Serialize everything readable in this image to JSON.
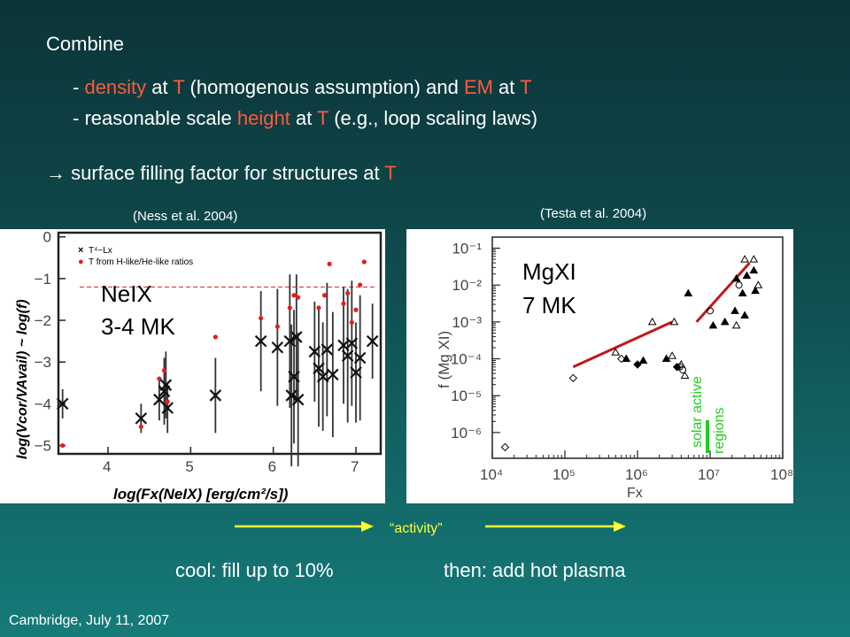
{
  "colors": {
    "highlight": "#ff5a3c",
    "arrow": "#ffff33",
    "solar": "#22cc22",
    "fit": "#c01818"
  },
  "heading": "Combine",
  "bullets": {
    "line1": {
      "dash": "- ",
      "w1": "density",
      "t1": " at ",
      "w2": "T",
      "t2": " (homogenous assumption)   and ",
      "w3": "EM",
      "t3": " at ",
      "w4": "T"
    },
    "line2": {
      "t1": "- reasonable scale ",
      "w1": "height",
      "t2": " at ",
      "w2": "T",
      "t3": " (e.g., loop scaling laws)"
    },
    "line3": {
      "arrow": "→",
      "t1": "  surface filling factor for structures at ",
      "w1": "T"
    }
  },
  "left_citation": "(Ness et al. 2004)",
  "right_citation": "(Testa et al. 2004)",
  "activity": {
    "label": "“activity”"
  },
  "bottom": {
    "left": "cool: fill up to 10%",
    "right": "then: add hot plasma"
  },
  "footer": "Cambridge, July 11, 2007",
  "chart_data": [
    {
      "type": "scatter",
      "title": "",
      "xlabel": "log(Fx(NeIX) [erg/cm²/s])",
      "ylabel": "log(Vcor/VAvail) ~ log(f)",
      "xticks": [
        "4",
        "5",
        "6",
        "7"
      ],
      "yticks": [
        "0",
        "−1",
        "−2",
        "−3",
        "−4",
        "−5"
      ],
      "xlim": [
        3.4,
        7.3
      ],
      "ylim": [
        -5.2,
        0.1
      ],
      "reference_line_y": -1.2,
      "legend": [
        {
          "marker": "×",
          "label": "T⁴~Lx"
        },
        {
          "marker": "●",
          "label": "T from H-like/He-like ratios"
        }
      ],
      "annotation": [
        "NeIX",
        "3-4 MK"
      ],
      "series": [
        {
          "name": "T⁴~Lx",
          "points": [
            [
              3.45,
              -4.0
            ],
            [
              4.4,
              -4.35
            ],
            [
              4.62,
              -3.9
            ],
            [
              4.68,
              -3.7
            ],
            [
              4.7,
              -3.55
            ],
            [
              4.72,
              -4.1
            ],
            [
              5.3,
              -3.8
            ],
            [
              5.85,
              -2.5
            ],
            [
              6.05,
              -2.65
            ],
            [
              6.2,
              -2.5
            ],
            [
              6.22,
              -3.8
            ],
            [
              6.25,
              -3.35
            ],
            [
              6.28,
              -2.4
            ],
            [
              6.3,
              -3.9
            ],
            [
              6.5,
              -2.75
            ],
            [
              6.55,
              -3.15
            ],
            [
              6.6,
              -3.35
            ],
            [
              6.65,
              -2.7
            ],
            [
              6.72,
              -3.3
            ],
            [
              6.85,
              -2.6
            ],
            [
              6.9,
              -2.85
            ],
            [
              6.95,
              -2.55
            ],
            [
              7.0,
              -3.25
            ],
            [
              7.05,
              -2.9
            ],
            [
              7.2,
              -2.5
            ]
          ],
          "yerr": [
            0.35,
            0.35,
            0.5,
            0.8,
            0.8,
            0.6,
            0.9,
            1.2,
            1.4,
            1.6,
            1.7,
            1.6,
            1.5,
            1.6,
            1.2,
            1.4,
            1.3,
            1.6,
            1.5,
            1.4,
            1.6,
            1.5,
            1.2,
            1.5,
            0.9
          ]
        },
        {
          "name": "T from H-like/He-like ratios",
          "points": [
            [
              3.45,
              -5.0
            ],
            [
              4.4,
              -4.55
            ],
            [
              4.62,
              -3.4
            ],
            [
              4.68,
              -3.2
            ],
            [
              4.72,
              -3.95
            ],
            [
              5.3,
              -2.4
            ],
            [
              5.85,
              -1.95
            ],
            [
              6.05,
              -2.15
            ],
            [
              6.2,
              -1.7
            ],
            [
              6.25,
              -1.4
            ],
            [
              6.3,
              -1.45
            ],
            [
              6.55,
              -1.7
            ],
            [
              6.62,
              -1.4
            ],
            [
              6.68,
              -0.65
            ],
            [
              6.85,
              -1.6
            ],
            [
              6.9,
              -1.35
            ],
            [
              6.95,
              -2.05
            ],
            [
              7.0,
              -1.75
            ],
            [
              7.05,
              -1.15
            ],
            [
              7.1,
              -0.6
            ]
          ]
        }
      ]
    },
    {
      "type": "scatter",
      "title": "",
      "xlabel": "Fx",
      "ylabel": "f (Mg XI)",
      "log_scale": true,
      "xticks": [
        "10⁴",
        "10⁵",
        "10⁶",
        "10⁷",
        "10⁸"
      ],
      "yticks": [
        "10⁻⁶",
        "10⁻⁵",
        "10⁻⁴",
        "10⁻³",
        "10⁻²",
        "10⁻¹"
      ],
      "xlim": [
        "1e4",
        "1e8"
      ],
      "ylim": [
        "2e-7",
        "2e-1"
      ],
      "annotation": [
        "MgXI",
        "7 MK"
      ],
      "region_label": [
        "solar active",
        "regions"
      ],
      "fits": [
        {
          "x": [
            130000.0,
            3000000.0
          ],
          "y": [
            6e-05,
            0.001
          ]
        },
        {
          "x": [
            6500000.0,
            35000000.0
          ],
          "y": [
            0.001,
            0.04
          ]
        }
      ],
      "series": [
        {
          "name": "",
          "marker": "filled-triangle",
          "points": [
            [
              700000.0,
              0.0001
            ],
            [
              1200000.0,
              9e-05
            ],
            [
              2500000.0,
              0.0001
            ],
            [
              5000000.0,
              0.006
            ],
            [
              11000000.0,
              0.0008
            ],
            [
              16000000.0,
              0.001
            ],
            [
              22000000.0,
              0.002
            ],
            [
              30000000.0,
              0.0015
            ],
            [
              28000000.0,
              0.006
            ],
            [
              23000000.0,
              0.015
            ],
            [
              32000000.0,
              0.018
            ],
            [
              40000000.0,
              0.025
            ],
            [
              42000000.0,
              0.007
            ]
          ]
        },
        {
          "name": "",
          "marker": "open-triangle",
          "points": [
            [
              500000.0,
              0.00015
            ],
            [
              1600000.0,
              0.001
            ],
            [
              3200000.0,
              0.001
            ],
            [
              3000000.0,
              0.00012
            ],
            [
              4000000.0,
              7e-05
            ],
            [
              4500000.0,
              3.5e-05
            ],
            [
              23000000.0,
              0.0008
            ],
            [
              30000000.0,
              0.05
            ],
            [
              40000000.0,
              0.05
            ],
            [
              46000000.0,
              0.01
            ]
          ]
        },
        {
          "name": "",
          "marker": "open-circle",
          "points": [
            [
              3800000.0,
              6e-05
            ],
            [
              4200000.0,
              5e-05
            ],
            [
              10000000.0,
              0.002
            ],
            [
              25000000.0,
              0.01
            ]
          ]
        },
        {
          "name": "",
          "marker": "open-diamond",
          "points": [
            [
              130000.0,
              3e-05
            ],
            [
              15000.0,
              4e-07
            ],
            [
              600000.0,
              0.0001
            ]
          ]
        },
        {
          "name": "",
          "marker": "filled-diamond",
          "points": [
            [
              1000000.0,
              7e-05
            ],
            [
              3500000.0,
              6e-05
            ]
          ]
        }
      ]
    }
  ]
}
